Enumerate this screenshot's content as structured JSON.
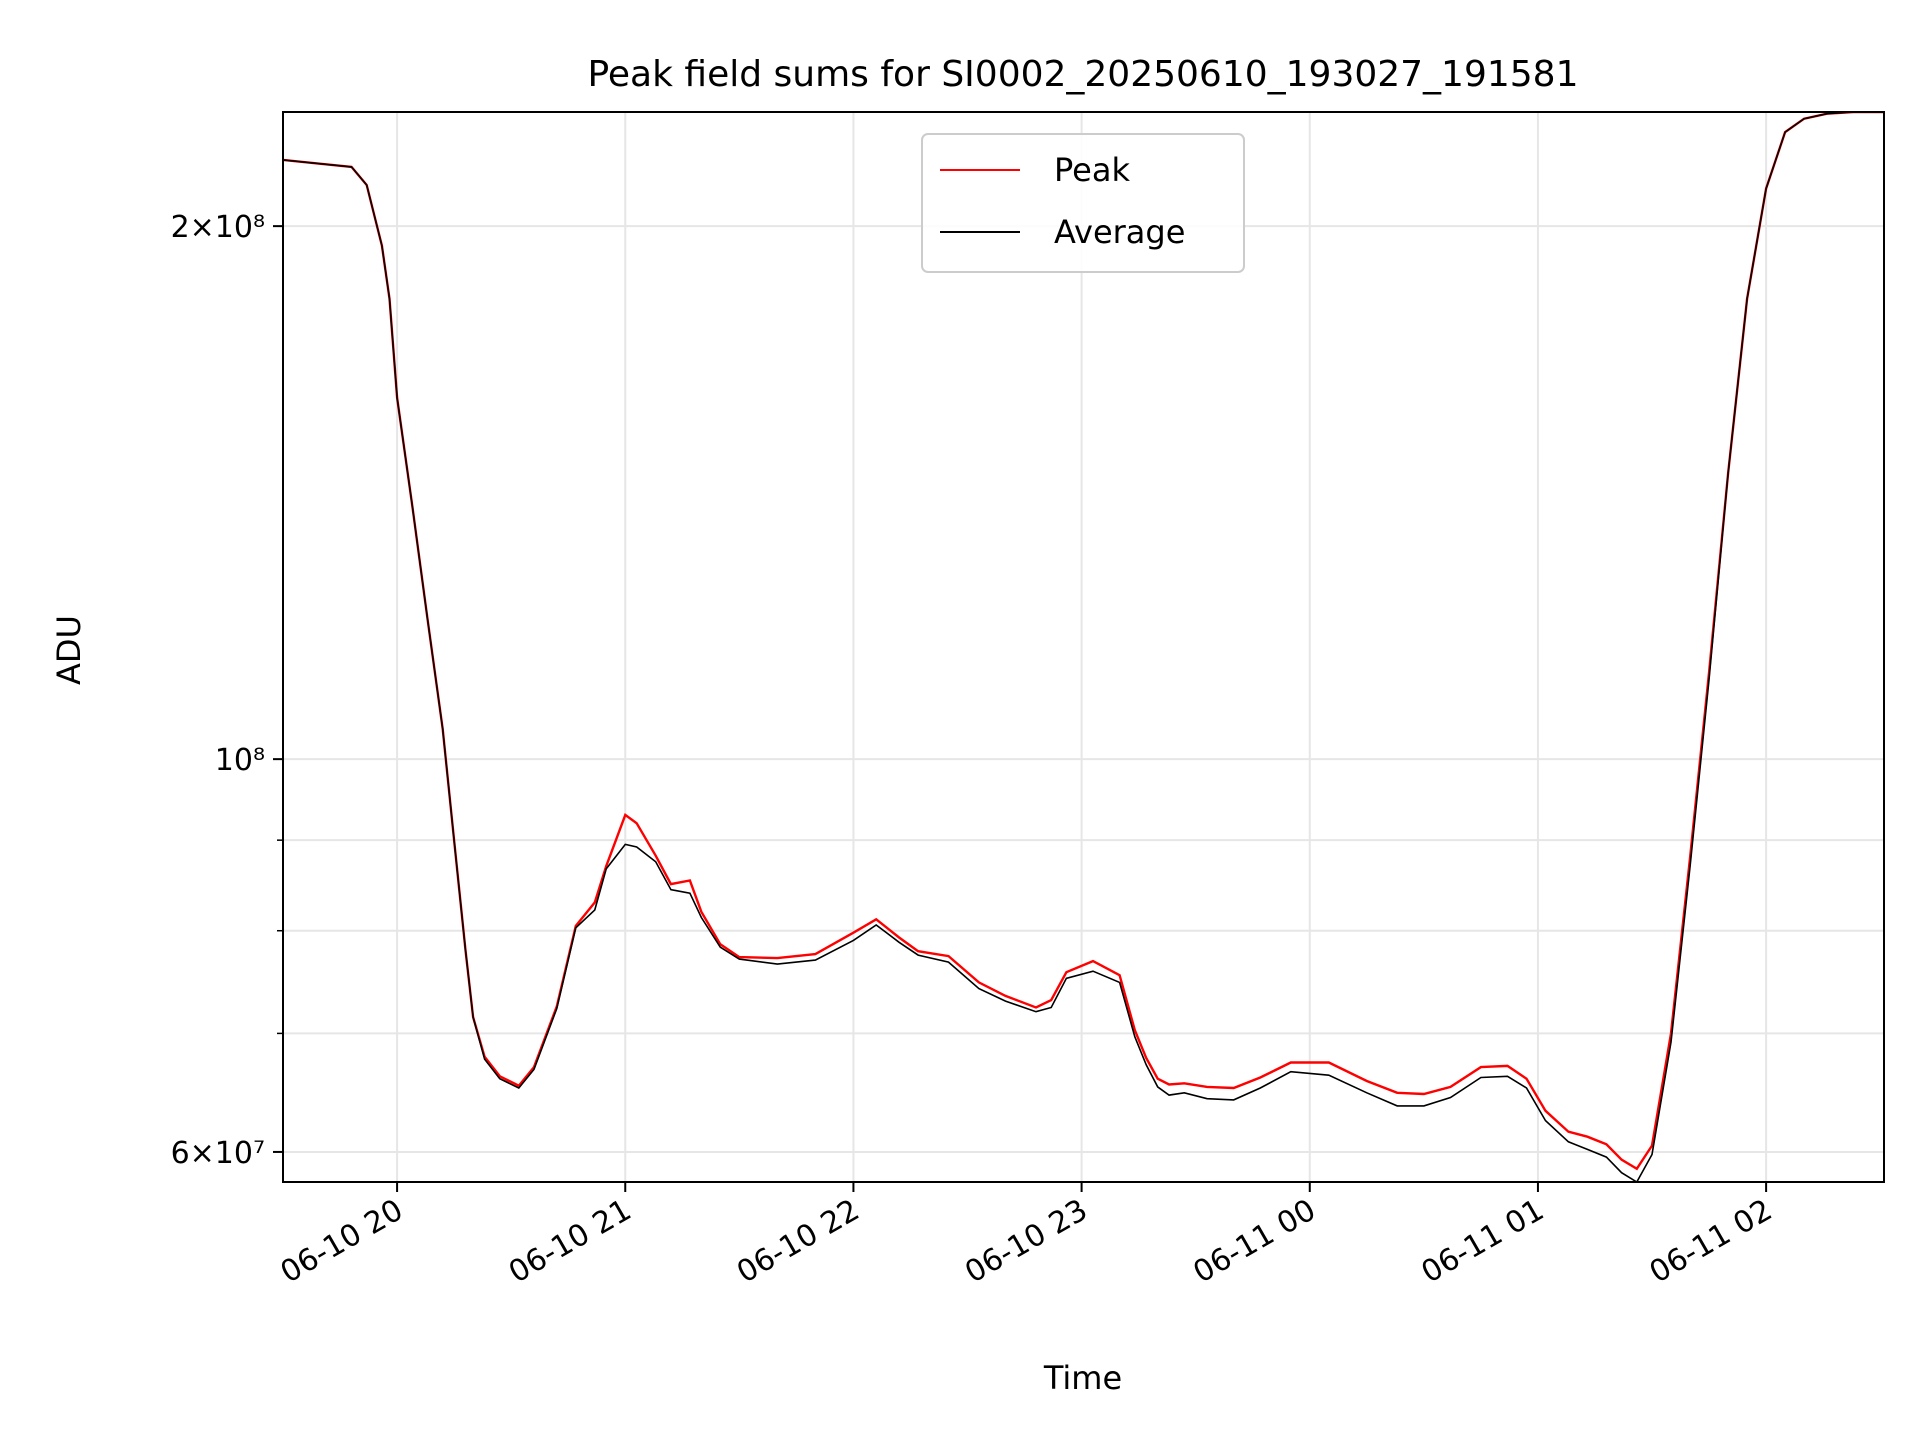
{
  "chart_data": {
    "type": "line",
    "title": "Peak field sums for SI0002_20250610_193027_191581",
    "xlabel": "Time",
    "ylabel": "ADU",
    "y_scale": "log",
    "xlim": [
      "2025-06-10 19:30",
      "2025-06-11 02:31"
    ],
    "ylim": [
      57700000,
      232000000
    ],
    "grid": true,
    "legend_position": "top-center",
    "x_ticks": [
      {
        "value": "2025-06-10 20:00",
        "label": "06-10 20"
      },
      {
        "value": "2025-06-10 21:00",
        "label": "06-10 21"
      },
      {
        "value": "2025-06-10 22:00",
        "label": "06-10 22"
      },
      {
        "value": "2025-06-10 23:00",
        "label": "06-10 23"
      },
      {
        "value": "2025-06-11 00:00",
        "label": "06-11 00"
      },
      {
        "value": "2025-06-11 01:00",
        "label": "06-11 01"
      },
      {
        "value": "2025-06-11 02:00",
        "label": "06-11 02"
      }
    ],
    "y_ticks": [
      {
        "value": 200000000,
        "label": "2×10⁸"
      },
      {
        "value": 100000000,
        "label": "10⁸"
      },
      {
        "value": 60000000,
        "label": "6×10⁷"
      }
    ],
    "series": [
      {
        "name": "Peak",
        "color": "#ff0000",
        "x": [
          "2025-06-10 19:30",
          "2025-06-10 19:39",
          "2025-06-10 19:48",
          "2025-06-10 19:52",
          "2025-06-10 19:56",
          "2025-06-10 19:58",
          "2025-06-10 20:00",
          "2025-06-10 20:04",
          "2025-06-10 20:08",
          "2025-06-10 20:12",
          "2025-06-10 20:15",
          "2025-06-10 20:18",
          "2025-06-10 20:20",
          "2025-06-10 20:23",
          "2025-06-10 20:27",
          "2025-06-10 20:32",
          "2025-06-10 20:36",
          "2025-06-10 20:42",
          "2025-06-10 20:47",
          "2025-06-10 20:52",
          "2025-06-10 20:55",
          "2025-06-10 21:00",
          "2025-06-10 21:03",
          "2025-06-10 21:08",
          "2025-06-10 21:12",
          "2025-06-10 21:17",
          "2025-06-10 21:20",
          "2025-06-10 21:25",
          "2025-06-10 21:30",
          "2025-06-10 21:40",
          "2025-06-10 21:50",
          "2025-06-10 22:00",
          "2025-06-10 22:06",
          "2025-06-10 22:12",
          "2025-06-10 22:17",
          "2025-06-10 22:25",
          "2025-06-10 22:33",
          "2025-06-10 22:40",
          "2025-06-10 22:48",
          "2025-06-10 22:52",
          "2025-06-10 22:56",
          "2025-06-10 23:03",
          "2025-06-10 23:10",
          "2025-06-10 23:14",
          "2025-06-10 23:17",
          "2025-06-10 23:20",
          "2025-06-10 23:23",
          "2025-06-10 23:27",
          "2025-06-10 23:33",
          "2025-06-10 23:40",
          "2025-06-10 23:47",
          "2025-06-10 23:55",
          "2025-06-11 00:05",
          "2025-06-11 00:15",
          "2025-06-11 00:23",
          "2025-06-11 00:30",
          "2025-06-11 00:37",
          "2025-06-11 00:45",
          "2025-06-11 00:52",
          "2025-06-11 00:57",
          "2025-06-11 01:02",
          "2025-06-11 01:08",
          "2025-06-11 01:13",
          "2025-06-11 01:18",
          "2025-06-11 01:22",
          "2025-06-11 01:26",
          "2025-06-11 01:30",
          "2025-06-11 01:35",
          "2025-06-11 01:40",
          "2025-06-11 01:45",
          "2025-06-11 01:50",
          "2025-06-11 01:55",
          "2025-06-11 02:00",
          "2025-06-11 02:05",
          "2025-06-11 02:10",
          "2025-06-11 02:16",
          "2025-06-11 02:23",
          "2025-06-11 02:31"
        ],
        "y": [
          218000000,
          217000000,
          216000000,
          211000000,
          195000000,
          182000000,
          160000000,
          139000000,
          120000000,
          104000000,
          90000000,
          78000000,
          71500000,
          67900000,
          66200000,
          65400000,
          67000000,
          72500000,
          80500000,
          83000000,
          87000000,
          93000000,
          92000000,
          88200000,
          85000000,
          85400000,
          82000000,
          78600000,
          77300000,
          77200000,
          77600000,
          79800000,
          81200000,
          79300000,
          77900000,
          77400000,
          74800000,
          73500000,
          72400000,
          73100000,
          75800000,
          76900000,
          75500000,
          70300000,
          67800000,
          66000000,
          65500000,
          65600000,
          65300000,
          65200000,
          66100000,
          67400000,
          67400000,
          65800000,
          64800000,
          64700000,
          65300000,
          67000000,
          67100000,
          66000000,
          63300000,
          61600000,
          61200000,
          60600000,
          59400000,
          58700000,
          60500000,
          70000000,
          88000000,
          112000000,
          145000000,
          182000000,
          210000000,
          226000000,
          230000000,
          231500000,
          232000000,
          232000000
        ]
      },
      {
        "name": "Average",
        "color": "#000000",
        "x": [
          "2025-06-10 19:30",
          "2025-06-10 19:39",
          "2025-06-10 19:48",
          "2025-06-10 19:52",
          "2025-06-10 19:56",
          "2025-06-10 19:58",
          "2025-06-10 20:00",
          "2025-06-10 20:04",
          "2025-06-10 20:08",
          "2025-06-10 20:12",
          "2025-06-10 20:15",
          "2025-06-10 20:18",
          "2025-06-10 20:20",
          "2025-06-10 20:23",
          "2025-06-10 20:27",
          "2025-06-10 20:32",
          "2025-06-10 20:36",
          "2025-06-10 20:42",
          "2025-06-10 20:47",
          "2025-06-10 20:52",
          "2025-06-10 20:55",
          "2025-06-10 21:00",
          "2025-06-10 21:03",
          "2025-06-10 21:08",
          "2025-06-10 21:12",
          "2025-06-10 21:17",
          "2025-06-10 21:20",
          "2025-06-10 21:25",
          "2025-06-10 21:30",
          "2025-06-10 21:40",
          "2025-06-10 21:50",
          "2025-06-10 22:00",
          "2025-06-10 22:06",
          "2025-06-10 22:12",
          "2025-06-10 22:17",
          "2025-06-10 22:25",
          "2025-06-10 22:33",
          "2025-06-10 22:40",
          "2025-06-10 22:48",
          "2025-06-10 22:52",
          "2025-06-10 22:56",
          "2025-06-10 23:03",
          "2025-06-10 23:10",
          "2025-06-10 23:14",
          "2025-06-10 23:17",
          "2025-06-10 23:20",
          "2025-06-10 23:23",
          "2025-06-10 23:27",
          "2025-06-10 23:33",
          "2025-06-10 23:40",
          "2025-06-10 23:47",
          "2025-06-10 23:55",
          "2025-06-11 00:05",
          "2025-06-11 00:15",
          "2025-06-11 00:23",
          "2025-06-11 00:30",
          "2025-06-11 00:37",
          "2025-06-11 00:45",
          "2025-06-11 00:52",
          "2025-06-11 00:57",
          "2025-06-11 01:02",
          "2025-06-11 01:08",
          "2025-06-11 01:13",
          "2025-06-11 01:18",
          "2025-06-11 01:22",
          "2025-06-11 01:26",
          "2025-06-11 01:30",
          "2025-06-11 01:35",
          "2025-06-11 01:40",
          "2025-06-11 01:45",
          "2025-06-11 01:50",
          "2025-06-11 01:55",
          "2025-06-11 02:00",
          "2025-06-11 02:05",
          "2025-06-11 02:10",
          "2025-06-11 02:16",
          "2025-06-11 02:23",
          "2025-06-11 02:31"
        ],
        "y": [
          218000000,
          217000000,
          216000000,
          211000000,
          195000000,
          182000000,
          160000000,
          139000000,
          120000000,
          104000000,
          90000000,
          78000000,
          71500000,
          67700000,
          66000000,
          65200000,
          66800000,
          72300000,
          80300000,
          82200000,
          86700000,
          89500000,
          89200000,
          87500000,
          84400000,
          84000000,
          81400000,
          78300000,
          77100000,
          76600000,
          77000000,
          79000000,
          80600000,
          78800000,
          77500000,
          76800000,
          74200000,
          73000000,
          72000000,
          72400000,
          75200000,
          75900000,
          74800000,
          69700000,
          67200000,
          65300000,
          64600000,
          64800000,
          64300000,
          64200000,
          65200000,
          66600000,
          66300000,
          64800000,
          63700000,
          63700000,
          64400000,
          66100000,
          66200000,
          65200000,
          62500000,
          60800000,
          60200000,
          59600000,
          58400000,
          57700000,
          59800000,
          69200000,
          87000000,
          111000000,
          145000000,
          182000000,
          210000000,
          226000000,
          230000000,
          231500000,
          232000000,
          232000000
        ]
      }
    ]
  }
}
